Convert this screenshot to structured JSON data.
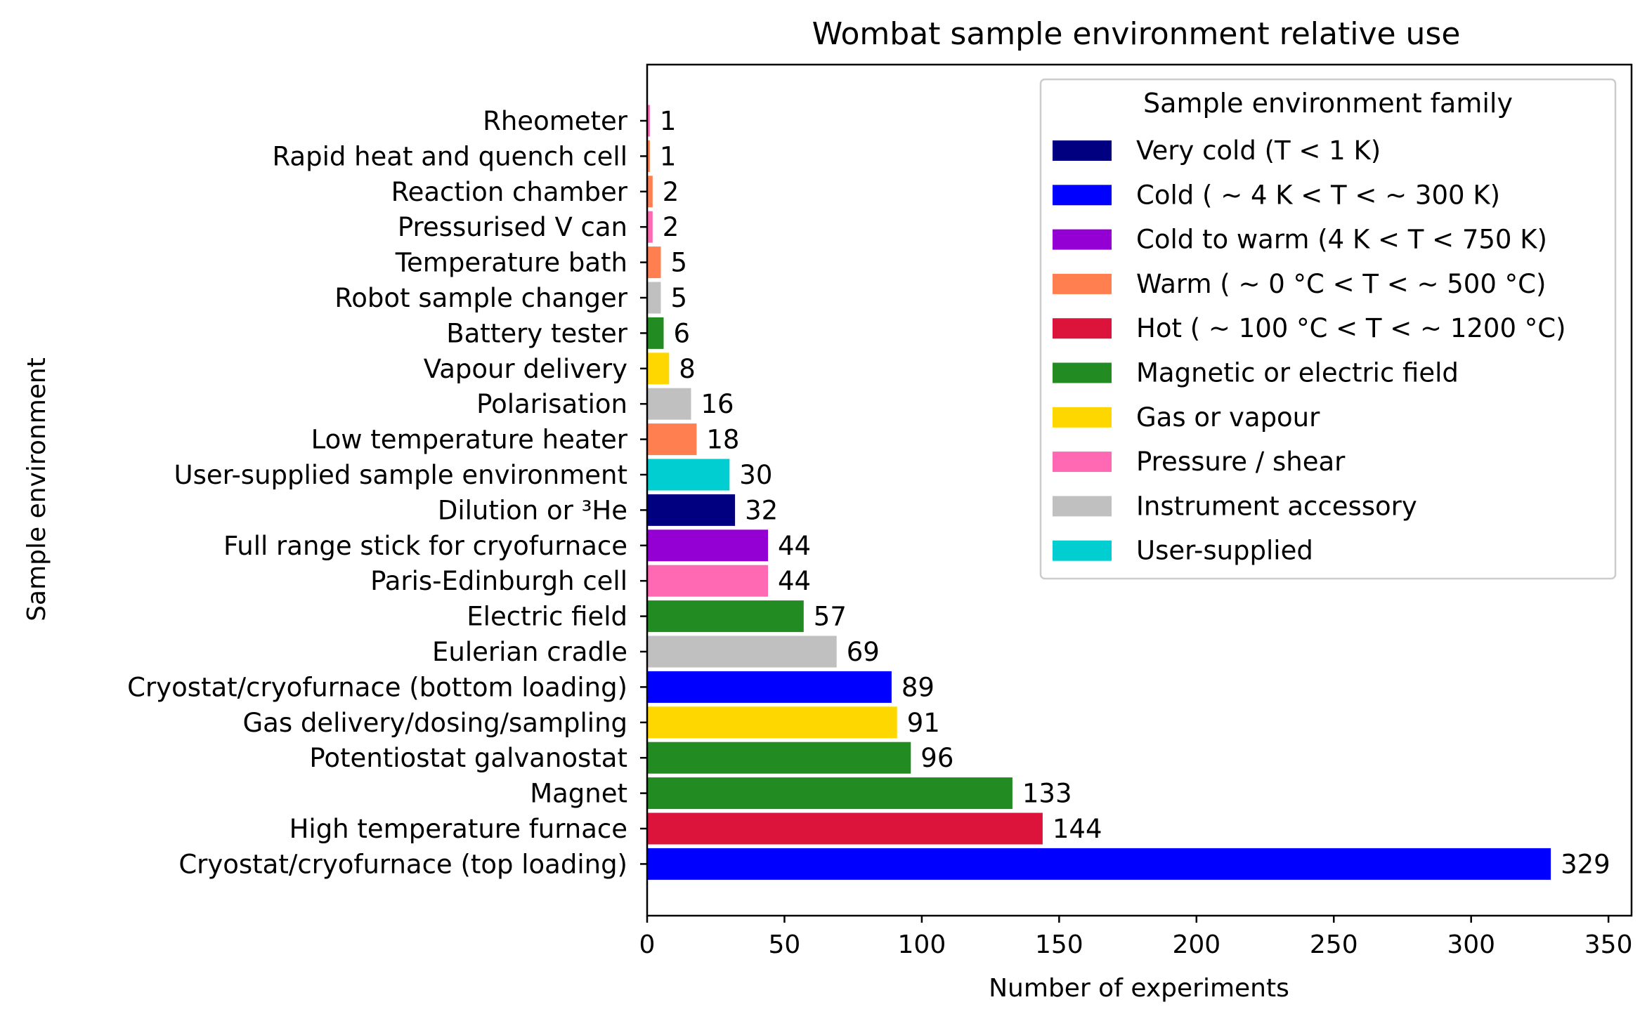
{
  "chart_data": {
    "type": "bar",
    "orientation": "horizontal",
    "title": "Wombat sample environment relative use",
    "xlabel": "Number of experiments",
    "ylabel": "Sample environment",
    "xlim": [
      0,
      360
    ],
    "xticks": [
      0,
      50,
      100,
      150,
      200,
      250,
      300,
      350
    ],
    "grid": false,
    "legend_placement": "top-right",
    "legend_title": "Sample environment family",
    "legend": [
      {
        "label": "Very cold (T < 1 K)",
        "color": "#000080"
      },
      {
        "label": "Cold ( ~ 4 K < T < ~ 300 K)",
        "color": "#0000ff"
      },
      {
        "label": "Cold to warm (4 K < T < 750 K)",
        "color": "#9400d3"
      },
      {
        "label": "Warm ( ~ 0 °C < T < ~ 500 °C)",
        "color": "#ff7f50"
      },
      {
        "label": "Hot ( ~ 100 °C < T < ~ 1200 °C)",
        "color": "#dc143c"
      },
      {
        "label": "Magnetic or electric field",
        "color": "#228b22"
      },
      {
        "label": "Gas or vapour",
        "color": "#ffd700"
      },
      {
        "label": "Pressure / shear",
        "color": "#ff69b4"
      },
      {
        "label": "Instrument accessory",
        "color": "#c0c0c0"
      },
      {
        "label": "User-supplied",
        "color": "#00ced1"
      }
    ],
    "categories": [
      "Rheometer",
      "Rapid heat and quench cell",
      "Reaction chamber",
      "Pressurised V can",
      "Temperature bath",
      "Robot sample changer",
      "Battery tester",
      "Vapour delivery",
      "Polarisation",
      "Low temperature heater",
      "User-supplied sample environment",
      "Dilution or ³He",
      "Full range stick for cryofurnace",
      "Paris-Edinburgh cell",
      "Electric field",
      "Eulerian cradle",
      "Cryostat/cryofurnace (bottom loading)",
      "Gas delivery/dosing/sampling",
      "Potentiostat galvanostat",
      "Magnet",
      "High temperature furnace",
      "Cryostat/cryofurnace (top loading)"
    ],
    "values": [
      1,
      1,
      2,
      2,
      5,
      5,
      6,
      8,
      16,
      18,
      30,
      32,
      44,
      44,
      57,
      69,
      89,
      91,
      96,
      133,
      144,
      329
    ],
    "colors": [
      "#ff69b4",
      "#ff7f50",
      "#ff7f50",
      "#ff69b4",
      "#ff7f50",
      "#c0c0c0",
      "#228b22",
      "#ffd700",
      "#c0c0c0",
      "#ff7f50",
      "#00ced1",
      "#000080",
      "#9400d3",
      "#ff69b4",
      "#228b22",
      "#c0c0c0",
      "#0000ff",
      "#ffd700",
      "#228b22",
      "#228b22",
      "#dc143c",
      "#0000ff"
    ]
  }
}
